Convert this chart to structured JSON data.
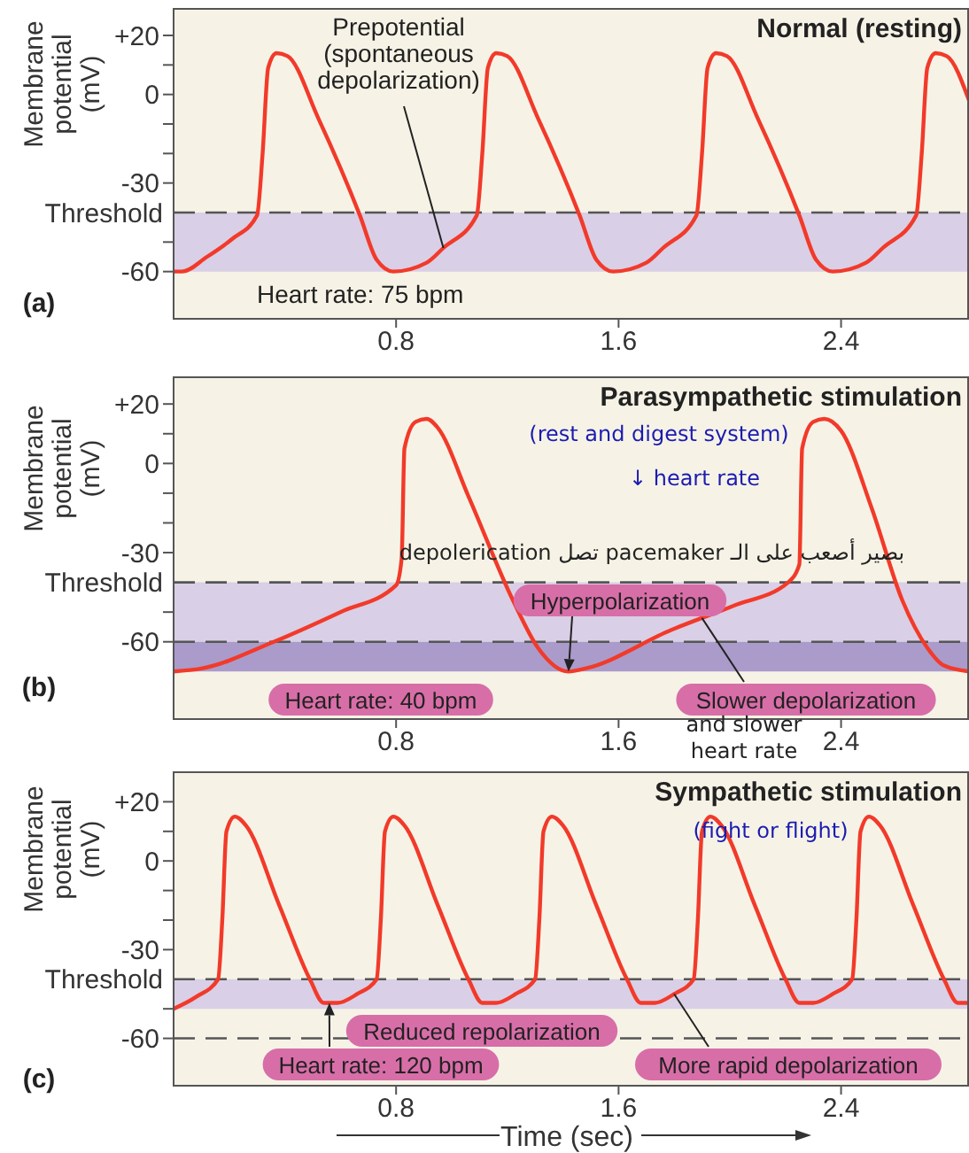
{
  "chart_data": [
    {
      "type": "line",
      "title": "Normal (resting)",
      "ylabel": "Membrane potential (mV)",
      "xlim": [
        0,
        2.86
      ],
      "xticks": [
        0.8,
        1.6,
        2.4
      ],
      "ylim": [
        -76,
        29
      ],
      "yticks": [
        {
          "value": 20,
          "label": "+20"
        },
        {
          "value": 10,
          "label": null
        },
        0,
        {
          "value": -10,
          "label": null
        },
        {
          "value": -20,
          "label": null
        },
        -30,
        {
          "value": -50,
          "label": null
        },
        -60
      ],
      "series": [
        {
          "color": "#f23a2a",
          "x": [
            0,
            0.03,
            0.12,
            0.21,
            0.3,
            0.32,
            0.34,
            0.37,
            0.41,
            0.52,
            0.67,
            0.73,
            0.79,
            0.91,
            0.97,
            1.09,
            1.11,
            1.13,
            1.16,
            1.2,
            1.31,
            1.46,
            1.52,
            1.58,
            1.7,
            1.76,
            1.88,
            1.9,
            1.92,
            1.95,
            1.99,
            2.1,
            2.25,
            2.31,
            2.37,
            2.49,
            2.55,
            2.67,
            2.69,
            2.71,
            2.74,
            2.78,
            2.86
          ],
          "values": [
            -60,
            -60,
            -55,
            -49,
            -41,
            -20,
            9,
            14,
            13,
            -8,
            -41,
            -56,
            -60,
            -57,
            -52,
            -41,
            -20,
            9,
            14,
            13,
            -8,
            -41,
            -56,
            -60,
            -57,
            -52,
            -41,
            -20,
            9,
            14,
            13,
            -8,
            -41,
            -56,
            -60,
            -57,
            -52,
            -41,
            -20,
            9,
            14,
            13,
            -2
          ]
        }
      ],
      "bands": [
        {
          "axis": "y",
          "from": -60,
          "to": -40,
          "color": "#d9cfe6"
        }
      ],
      "ref_lines": [
        {
          "axis": "y",
          "value": -40,
          "label": "Threshold",
          "color": "#555555",
          "line_style": "dashed"
        }
      ],
      "annotations": [
        {
          "text": "Prepotential\n(spontaneous\ndepolarization)",
          "x": 0.97,
          "y": -52
        },
        "Heart rate: 75 bpm",
        "(a)"
      ]
    },
    {
      "type": "line",
      "title": "Parasympathetic stimulation",
      "ylabel": "Membrane potential (mV)",
      "xlim": [
        0,
        2.86
      ],
      "xticks": [
        0.8,
        1.6,
        2.4
      ],
      "ylim": [
        -86,
        29
      ],
      "yticks": [
        {
          "value": 20,
          "label": "+20"
        },
        {
          "value": 10,
          "label": null
        },
        0,
        {
          "value": -10,
          "label": null
        },
        {
          "value": -20,
          "label": null
        },
        -30,
        {
          "value": -50,
          "label": null
        },
        -60
      ],
      "series": [
        {
          "color": "#f23a2a",
          "x": [
            0,
            0.1,
            0.36,
            0.6,
            0.8,
            0.82,
            0.83,
            0.87,
            0.91,
            0.95,
            1.06,
            1.22,
            1.31,
            1.42,
            1.48,
            1.79,
            2.01,
            2.21,
            2.25,
            2.26,
            2.3,
            2.34,
            2.4,
            2.51,
            2.62,
            2.71,
            2.77,
            2.86
          ],
          "values": [
            -70,
            -69,
            -60,
            -50,
            -41,
            -32,
            5,
            14,
            15,
            12,
            -11,
            -46,
            -62,
            -70,
            -69,
            -56,
            -48,
            -40,
            -34,
            5,
            14,
            15,
            11,
            -15,
            -46,
            -62,
            -68,
            -70
          ]
        }
      ],
      "bands": [
        {
          "axis": "y",
          "from": -60,
          "to": -40,
          "color": "#d9cfe6"
        },
        {
          "axis": "y",
          "from": -70,
          "to": -60,
          "color": "#ab9bcb"
        }
      ],
      "ref_lines": [
        {
          "axis": "y",
          "value": -40,
          "label": "Threshold",
          "color": "#555555",
          "line_style": "dashed"
        },
        {
          "axis": "y",
          "value": -60,
          "color": "#555555",
          "line_style": "dashed"
        }
      ],
      "annotations": [
        "(rest and digest system)",
        "↓ heart rate",
        "بصير أصعب على الـ pacemaker تصل depolerication",
        {
          "text": "Hyperpolarization",
          "x": 1.42,
          "y": -70
        },
        {
          "text": "Slower depolarization",
          "x": 1.9,
          "y": -52
        },
        "Heart rate: 40 bpm",
        "(b)",
        "and slower\nheart rate"
      ]
    },
    {
      "type": "line",
      "title": "Sympathetic stimulation",
      "ylabel": "Membrane potential (mV)",
      "xlabel": "Time (sec)",
      "xlim": [
        0,
        2.86
      ],
      "xticks": [
        0.8,
        1.6,
        2.4
      ],
      "ylim": [
        -76,
        30
      ],
      "yticks": [
        {
          "value": 20,
          "label": "+20"
        },
        {
          "value": 10,
          "label": null
        },
        0,
        {
          "value": -10,
          "label": null
        },
        {
          "value": -20,
          "label": null
        },
        -30,
        {
          "value": -50,
          "label": null
        },
        -60
      ],
      "series": [
        {
          "color": "#f23a2a",
          "x": [
            0,
            0.08,
            0.16,
            0.175,
            0.19,
            0.22,
            0.26,
            0.38,
            0.49,
            0.54,
            0.59,
            0.66,
            0.73,
            0.745,
            0.76,
            0.79,
            0.83,
            0.95,
            1.06,
            1.11,
            1.16,
            1.23,
            1.3,
            1.315,
            1.33,
            1.36,
            1.4,
            1.52,
            1.63,
            1.68,
            1.73,
            1.8,
            1.87,
            1.885,
            1.9,
            1.93,
            1.97,
            2.09,
            2.2,
            2.25,
            2.3,
            2.37,
            2.44,
            2.455,
            2.47,
            2.5,
            2.54,
            2.66,
            2.77,
            2.82,
            2.86
          ],
          "values": [
            -50,
            -46,
            -40,
            -20,
            10,
            15,
            12,
            -15,
            -40,
            -48,
            -48,
            -45,
            -40,
            -20,
            10,
            15,
            12,
            -15,
            -40,
            -48,
            -48,
            -45,
            -40,
            -20,
            10,
            15,
            12,
            -15,
            -40,
            -48,
            -48,
            -45,
            -40,
            -20,
            10,
            15,
            12,
            -15,
            -40,
            -48,
            -48,
            -45,
            -40,
            -20,
            10,
            15,
            12,
            -15,
            -40,
            -48,
            -48
          ]
        }
      ],
      "bands": [
        {
          "axis": "y",
          "from": -50,
          "to": -40,
          "color": "#d9cfe6"
        }
      ],
      "ref_lines": [
        {
          "axis": "y",
          "value": -40,
          "label": "Threshold",
          "color": "#555555",
          "line_style": "dashed"
        },
        {
          "axis": "y",
          "value": -60,
          "color": "#555555",
          "line_style": "dashed"
        }
      ],
      "annotations": [
        "(fight or flight)",
        {
          "text": "Reduced repolarization",
          "x": 0.56,
          "y": -48
        },
        {
          "text": "More rapid depolarization",
          "x": 1.8,
          "y": -45
        },
        "Heart rate: 120 bpm",
        "(c)"
      ]
    }
  ]
}
